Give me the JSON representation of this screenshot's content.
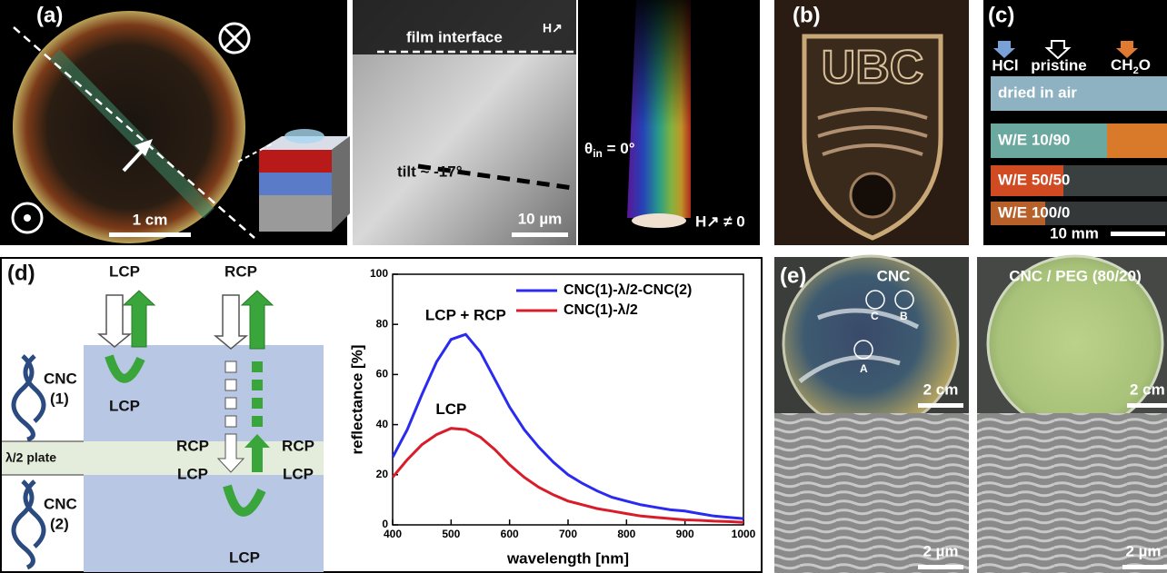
{
  "panels": {
    "a": {
      "label": "(a)",
      "scale_bar": "1 cm",
      "sem_interface": "film interface",
      "sem_field": "H↗",
      "sem_tilt": "tilt ~ -17°",
      "sem_scale": "10 µm",
      "angle_symbol": "θ",
      "angle_subscript": "in",
      "angle_value": " = 0°",
      "field_note": "H↗ ≠ 0"
    },
    "b": {
      "label": "(b)",
      "logo_text": "UBC"
    },
    "c": {
      "label": "(c)",
      "columns": [
        "HCl",
        "pristine"
      ],
      "formaldehyde": {
        "main": "CH",
        "subscript": "2",
        "end": "O"
      },
      "strips": [
        "dried in air",
        "W/E 10/90",
        "W/E 50/50",
        "W/E 100/0"
      ],
      "scale_bar": "10 mm"
    },
    "d": {
      "label": "(d)",
      "diagram_labels": [
        "LCP",
        "RCP",
        "CNC",
        "(1)",
        "LCP",
        "λ/2 plate",
        "RCP",
        "RCP",
        "LCP",
        "LCP",
        "CNC",
        "(2)",
        "LCP"
      ]
    },
    "e": {
      "label": "(e)",
      "titles": [
        "CNC",
        "CNC / PEG (80/20)"
      ],
      "spots": [
        "A",
        "B",
        "C"
      ],
      "photo_scale": [
        "2 cm",
        "2 cm"
      ],
      "sem_scale": [
        "2 µm",
        "2 µm"
      ]
    }
  },
  "chart_data": {
    "type": "line",
    "xlabel": "wavelength [nm]",
    "ylabel": "reflectance [%]",
    "x": [
      400,
      425,
      450,
      475,
      500,
      525,
      550,
      575,
      600,
      625,
      650,
      675,
      700,
      725,
      750,
      775,
      800,
      825,
      850,
      875,
      900,
      925,
      950,
      975,
      1000
    ],
    "series": [
      {
        "name": "CNC(1)-λ/2-CNC(2)",
        "color": "#2a2af0",
        "values": [
          27,
          38,
          52,
          65,
          74,
          76,
          69,
          58,
          47,
          38,
          31,
          25,
          20,
          16.5,
          13.5,
          11,
          9.5,
          8,
          7,
          6,
          5.5,
          4.5,
          3.5,
          3,
          2.5
        ]
      },
      {
        "name": "CNC(1)-λ/2",
        "color": "#d81c2a",
        "values": [
          19,
          26,
          32,
          36,
          38.5,
          38,
          35,
          30,
          24,
          19,
          15,
          12,
          9.5,
          8,
          6.5,
          5.5,
          4.5,
          3.5,
          3,
          2.5,
          2,
          1.8,
          1.5,
          1.3,
          1
        ]
      }
    ],
    "annotations": [
      "LCP + RCP",
      "LCP"
    ],
    "xlim": [
      400,
      1000
    ],
    "ylim": [
      0,
      100
    ],
    "xticks": [
      400,
      500,
      600,
      700,
      800,
      900,
      1000
    ],
    "yticks": [
      0,
      20,
      40,
      60,
      80,
      100
    ],
    "legend": "upper right"
  }
}
